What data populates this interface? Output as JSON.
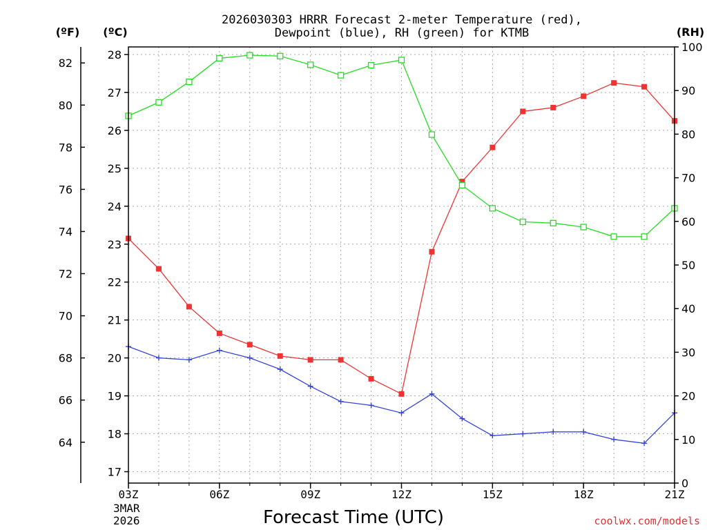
{
  "chart_data": {
    "type": "line",
    "title_line1": "2026030303 HRRR Forecast 2-meter Temperature (red),",
    "title_line2": "Dewpoint (blue), RH (green) for KTMB",
    "axis_units": {
      "fahrenheit": "(ºF)",
      "celsius": "(ºC)",
      "rh": "(RH)"
    },
    "xlabel": "Forecast Time (UTC)",
    "watermark": "coolwx.com/models",
    "date_line1": "3MAR",
    "date_line2": "2026",
    "x_hours": [
      3,
      4,
      5,
      6,
      7,
      8,
      9,
      10,
      11,
      12,
      13,
      14,
      15,
      16,
      17,
      18,
      19,
      20,
      21
    ],
    "x_ticks": [
      {
        "hour": 3,
        "label": "03Z"
      },
      {
        "hour": 6,
        "label": "06Z"
      },
      {
        "hour": 9,
        "label": "09Z"
      },
      {
        "hour": 12,
        "label": "12Z"
      },
      {
        "hour": 15,
        "label": "15Z"
      },
      {
        "hour": 18,
        "label": "18Z"
      },
      {
        "hour": 21,
        "label": "21Z"
      }
    ],
    "xlim": [
      3,
      21
    ],
    "celsius_range": [
      16.7,
      28.2
    ],
    "celsius_ticks": [
      17,
      18,
      19,
      20,
      21,
      22,
      23,
      24,
      25,
      26,
      27,
      28
    ],
    "fahrenheit_ticks": [
      64,
      66,
      68,
      70,
      72,
      74,
      76,
      78,
      80,
      82
    ],
    "rh_range": [
      0,
      100
    ],
    "rh_ticks": [
      0,
      10,
      20,
      30,
      40,
      50,
      60,
      70,
      80,
      90,
      100
    ],
    "grid": true,
    "series": [
      {
        "name": "Temperature",
        "color": "#ee3333",
        "marker": "filled-square",
        "axis": "celsius",
        "values": [
          23.15,
          22.35,
          21.35,
          20.65,
          20.35,
          20.05,
          19.95,
          19.95,
          19.45,
          19.05,
          22.8,
          24.65,
          25.55,
          26.5,
          26.6,
          26.9,
          27.25,
          27.15,
          26.25
        ]
      },
      {
        "name": "Dewpoint",
        "color": "#3344dd",
        "marker": "plus",
        "axis": "celsius",
        "values": [
          20.3,
          20.0,
          19.95,
          20.2,
          20.0,
          19.7,
          19.25,
          18.85,
          18.75,
          18.55,
          19.05,
          18.4,
          17.95,
          18.0,
          18.05,
          18.05,
          17.85,
          17.75,
          18.55
        ]
      },
      {
        "name": "RH",
        "color": "#22dd22",
        "marker": "open-square",
        "axis": "rh",
        "values": [
          84.2,
          87.3,
          92.0,
          97.4,
          98.1,
          97.9,
          95.9,
          93.5,
          95.8,
          97.0,
          79.9,
          68.3,
          63.0,
          59.9,
          59.6,
          58.7,
          56.5,
          56.5,
          63.0
        ]
      }
    ]
  }
}
